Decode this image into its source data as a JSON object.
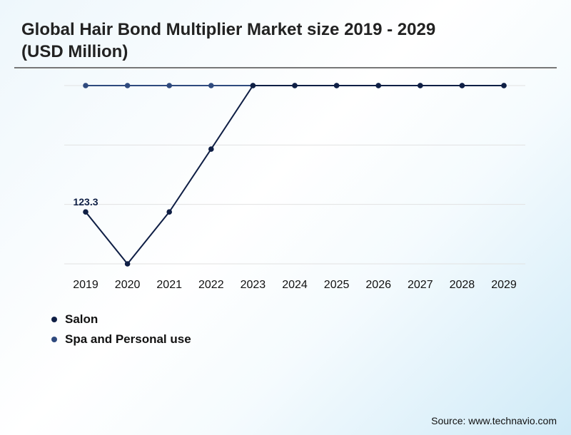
{
  "title": "Global Hair Bond Multiplier Market size 2019 - 2029 (USD Million)",
  "source": "Source: www.technavio.com",
  "chart_data": {
    "type": "line",
    "title": "Global Hair Bond Multiplier Market size 2019 - 2029 (USD Million)",
    "xlabel": "",
    "ylabel": "",
    "categories": [
      "2019",
      "2020",
      "2021",
      "2022",
      "2023",
      "2024",
      "2025",
      "2026",
      "2027",
      "2028",
      "2029"
    ],
    "ylim": [
      100,
      180
    ],
    "grid": true,
    "legend_position": "bottom-left",
    "series": [
      {
        "name": "Salon",
        "color": "#0f1f45",
        "values": [
          123.3,
          100,
          123.3,
          151.5,
          180,
          180,
          180,
          180,
          180,
          180,
          180
        ]
      },
      {
        "name": "Spa and Personal use",
        "color": "#2f4a7e",
        "values": [
          180,
          180,
          180,
          180,
          180,
          180,
          180,
          180,
          180,
          180,
          180
        ]
      }
    ],
    "annotations": [
      {
        "series": "Salon",
        "category": "2019",
        "label": "123.3"
      }
    ]
  }
}
